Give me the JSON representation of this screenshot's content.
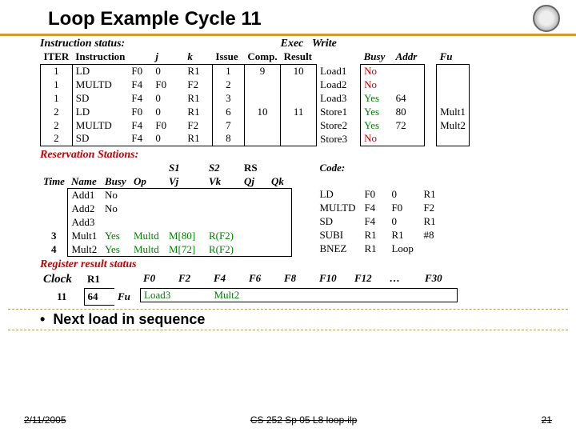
{
  "title": "Loop Example Cycle 11",
  "sections": {
    "instr_status": "Instruction status:",
    "res_stations": "Reservation Stations:",
    "reg_result": "Register result status"
  },
  "instr_hdr": {
    "iter": "ITER",
    "instr": "Instruction",
    "j": "j",
    "k": "k",
    "issue": "Issue",
    "exec": "Exec",
    "write": "Write",
    "comp": "Comp.",
    "result": "Result",
    "busy": "Busy",
    "addr": "Addr",
    "fu": "Fu"
  },
  "instr_rows": [
    {
      "it": "1",
      "op": "LD",
      "d": "F0",
      "j": "0",
      "k": "R1",
      "iss": "1",
      "ex": "9",
      "wr": "10",
      "ld": "Load1",
      "b": "No",
      "a": "",
      "fu": ""
    },
    {
      "it": "1",
      "op": "MULTD",
      "d": "F4",
      "j": "F0",
      "k": "F2",
      "iss": "2",
      "ex": "",
      "wr": "",
      "ld": "Load2",
      "b": "No",
      "a": "",
      "fu": ""
    },
    {
      "it": "1",
      "op": "SD",
      "d": "F4",
      "j": "0",
      "k": "R1",
      "iss": "3",
      "ex": "",
      "wr": "",
      "ld": "Load3",
      "b": "Yes",
      "a": "64",
      "fu": ""
    },
    {
      "it": "2",
      "op": "LD",
      "d": "F0",
      "j": "0",
      "k": "R1",
      "iss": "6",
      "ex": "10",
      "wr": "11",
      "ld": "Store1",
      "b": "Yes",
      "a": "80",
      "fu": "Mult1"
    },
    {
      "it": "2",
      "op": "MULTD",
      "d": "F4",
      "j": "F0",
      "k": "F2",
      "iss": "7",
      "ex": "",
      "wr": "",
      "ld": "Store2",
      "b": "Yes",
      "a": "72",
      "fu": "Mult2"
    },
    {
      "it": "2",
      "op": "SD",
      "d": "F4",
      "j": "0",
      "k": "R1",
      "iss": "8",
      "ex": "",
      "wr": "",
      "ld": "Store3",
      "b": "No",
      "a": "",
      "fu": ""
    }
  ],
  "rs_hdr": {
    "time": "Time",
    "name": "Name",
    "busy": "Busy",
    "op": "Op",
    "vj": "Vj",
    "vk": "Vk",
    "qj": "Qj",
    "qk": "Qk",
    "s1": "S1",
    "s2": "S2",
    "rs": "RS",
    "code": "Code:"
  },
  "rs_rows": [
    {
      "t": "",
      "n": "Add1",
      "b": "No",
      "op": "",
      "vj": "",
      "vk": "",
      "qj": "",
      "qk": ""
    },
    {
      "t": "",
      "n": "Add2",
      "b": "No",
      "op": "",
      "vj": "",
      "vk": "",
      "qj": "",
      "qk": ""
    },
    {
      "t": "",
      "n": "Add3",
      "b": "",
      "op": "",
      "vj": "",
      "vk": "",
      "qj": "",
      "qk": ""
    },
    {
      "t": "3",
      "n": "Mult1",
      "b": "Yes",
      "op": "Multd",
      "vj": "M[80]",
      "vk": "R(F2)",
      "qj": "",
      "qk": ""
    },
    {
      "t": "4",
      "n": "Mult2",
      "b": "Yes",
      "op": "Multd",
      "vj": "M[72]",
      "vk": "R(F2)",
      "qj": "",
      "qk": ""
    }
  ],
  "code_rows": [
    {
      "op": "LD",
      "a": "F0",
      "b": "0",
      "c": "R1"
    },
    {
      "op": "MULTD",
      "a": "F4",
      "b": "F0",
      "c": "F2"
    },
    {
      "op": "SD",
      "a": "F4",
      "b": "0",
      "c": "R1"
    },
    {
      "op": "SUBI",
      "a": "R1",
      "b": "R1",
      "c": "#8"
    },
    {
      "op": "BNEZ",
      "a": "R1",
      "b": "Loop",
      "c": ""
    }
  ],
  "reg": {
    "clock": "Clock",
    "clock_val": "11",
    "r1": "R1",
    "r1_val": "64",
    "fu": "Fu",
    "cols": [
      "F0",
      "F2",
      "F4",
      "F6",
      "F8",
      "F10",
      "F12",
      "…",
      "F30"
    ],
    "vals": [
      "Load3",
      "",
      "Mult2",
      "",
      "",
      "",
      "",
      "",
      ""
    ]
  },
  "bullet": "Next load in sequence",
  "footer": {
    "date": "2/11/2005",
    "mid": "CS 252 Sp 05 L8 loop-ilp",
    "page": "21"
  }
}
